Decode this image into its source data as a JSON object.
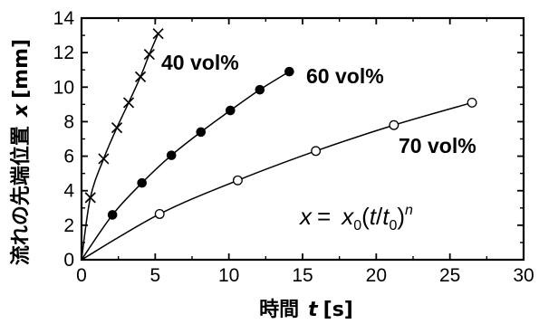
{
  "chart_data": {
    "type": "scatter",
    "xlabel_text": "時間",
    "xlabel_var": "t",
    "xlabel_unit": "[s]",
    "ylabel_text": "流れの先端位置",
    "ylabel_var": "x",
    "ylabel_unit": "[mm]",
    "xlim": [
      0,
      30
    ],
    "ylim": [
      0,
      14
    ],
    "x_ticks": [
      "0",
      "5",
      "10",
      "15",
      "20",
      "25",
      "30"
    ],
    "y_ticks": [
      "0",
      "2",
      "4",
      "6",
      "8",
      "10",
      "12",
      "14"
    ],
    "grid": false,
    "series": [
      {
        "name": "40 vol%",
        "marker": "x",
        "x": [
          0,
          0.6,
          1.5,
          2.4,
          3.2,
          4.0,
          4.6,
          5.2
        ],
        "y": [
          0,
          3.6,
          5.85,
          7.65,
          9.1,
          10.6,
          11.9,
          13.1
        ]
      },
      {
        "name": "60 vol%",
        "marker": "filled-circle",
        "x": [
          0,
          2.1,
          4.1,
          6.1,
          8.1,
          10.1,
          12.1,
          14.1
        ],
        "y": [
          0,
          2.6,
          4.45,
          6.05,
          7.4,
          8.65,
          9.85,
          10.9
        ]
      },
      {
        "name": "70 vol%",
        "marker": "open-circle",
        "x": [
          0,
          5.3,
          10.6,
          15.9,
          21.2,
          26.5
        ],
        "y": [
          0,
          2.65,
          4.6,
          6.3,
          7.8,
          9.1
        ]
      }
    ],
    "formula": {
      "lhs": "x",
      "eq": "=",
      "x0": "x",
      "x0_sub": "0",
      "open": "(",
      "t": "t",
      "slash": "/",
      "t0": "t",
      "t0_sub": "0",
      "close": ")",
      "exp": "n"
    }
  }
}
